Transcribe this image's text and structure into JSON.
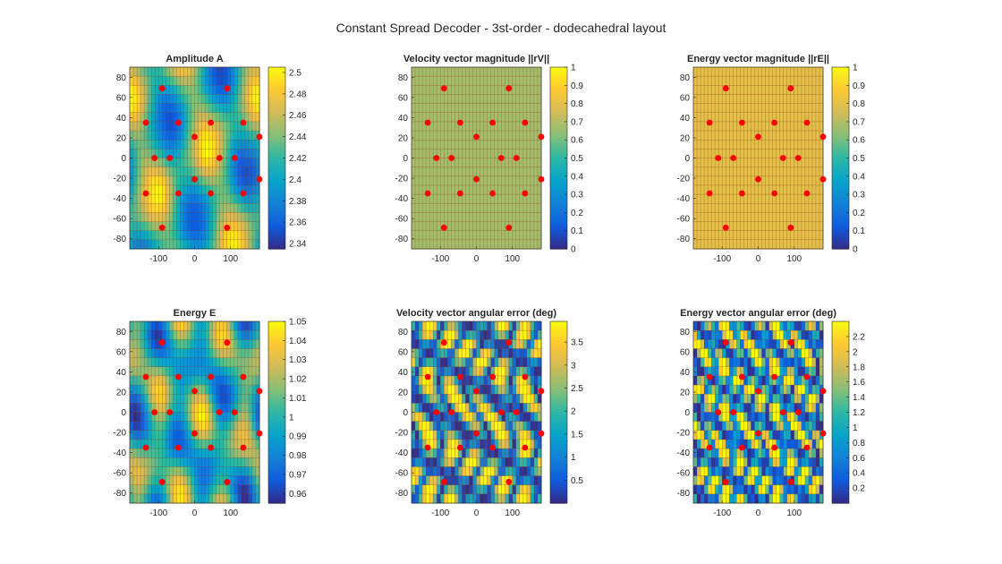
{
  "figure_title": "Constant Spread Decoder - 3st-order - dodecahedral layout",
  "colors": {
    "background": "#ffffff",
    "speaker_marker": "#ff0000",
    "grid": "#8a3a1a",
    "colormap": [
      "#352a87",
      "#0f5cdd",
      "#1481d6",
      "#06a4ca",
      "#2eb7a4",
      "#87bf77",
      "#d1bb59",
      "#fec832",
      "#f9fb0e"
    ]
  },
  "chart_data": [
    {
      "type": "heatmap",
      "title": "Amplitude A",
      "xlim": [
        -180,
        180
      ],
      "ylim": [
        -90,
        90
      ],
      "xticks": [
        -100,
        0,
        100
      ],
      "yticks": [
        -80,
        -60,
        -40,
        -20,
        0,
        20,
        40,
        60,
        80
      ],
      "colorbar": {
        "range": [
          2.335,
          2.505
        ],
        "ticks": [
          "2.5",
          "2.48",
          "2.46",
          "2.44",
          "2.42",
          "2.4",
          "2.38",
          "2.36",
          "2.34"
        ],
        "tick_values": [
          2.5,
          2.48,
          2.46,
          2.44,
          2.42,
          2.4,
          2.38,
          2.36,
          2.34
        ]
      },
      "field": "amplitude"
    },
    {
      "type": "heatmap",
      "title": "Velocity vector magnitude ||rV||",
      "xlim": [
        -180,
        180
      ],
      "ylim": [
        -90,
        90
      ],
      "xticks": [
        -100,
        0,
        100
      ],
      "yticks": [
        -80,
        -60,
        -40,
        -20,
        0,
        20,
        40,
        60,
        80
      ],
      "colorbar": {
        "range": [
          0,
          1
        ],
        "ticks": [
          "1",
          "0.9",
          "0.8",
          "0.7",
          "0.6",
          "0.5",
          "0.4",
          "0.3",
          "0.2",
          "0.1",
          "0"
        ],
        "tick_values": [
          1,
          0.9,
          0.8,
          0.7,
          0.6,
          0.5,
          0.4,
          0.3,
          0.2,
          0.1,
          0
        ]
      },
      "uniform_value": 0.67
    },
    {
      "type": "heatmap",
      "title": "Energy vector magnitude ||rE||",
      "xlim": [
        -180,
        180
      ],
      "ylim": [
        -90,
        90
      ],
      "xticks": [
        -100,
        0,
        100
      ],
      "yticks": [
        -80,
        -60,
        -40,
        -20,
        0,
        20,
        40,
        60,
        80
      ],
      "colorbar": {
        "range": [
          0,
          1
        ],
        "ticks": [
          "1",
          "0.9",
          "0.8",
          "0.7",
          "0.6",
          "0.5",
          "0.4",
          "0.3",
          "0.2",
          "0.1",
          "0"
        ],
        "tick_values": [
          1,
          0.9,
          0.8,
          0.7,
          0.6,
          0.5,
          0.4,
          0.3,
          0.2,
          0.1,
          0
        ]
      },
      "uniform_value": 0.8
    },
    {
      "type": "heatmap",
      "title": "Energy E",
      "xlim": [
        -180,
        180
      ],
      "ylim": [
        -90,
        90
      ],
      "xticks": [
        -100,
        0,
        100
      ],
      "yticks": [
        -80,
        -60,
        -40,
        -20,
        0,
        20,
        40,
        60,
        80
      ],
      "colorbar": {
        "range": [
          0.955,
          1.05
        ],
        "ticks": [
          "1.05",
          "1.04",
          "1.03",
          "1.02",
          "1.01",
          "1",
          "0.99",
          "0.98",
          "0.97",
          "0.96"
        ],
        "tick_values": [
          1.05,
          1.04,
          1.03,
          1.02,
          1.01,
          1.0,
          0.99,
          0.98,
          0.97,
          0.96
        ]
      },
      "field": "energy"
    },
    {
      "type": "heatmap",
      "title": "Velocity vector angular error (deg)",
      "xlim": [
        -180,
        180
      ],
      "ylim": [
        -90,
        90
      ],
      "xticks": [
        -100,
        0,
        100
      ],
      "yticks": [
        -80,
        -60,
        -40,
        -20,
        0,
        20,
        40,
        60,
        80
      ],
      "colorbar": {
        "range": [
          0,
          3.95
        ],
        "ticks": [
          "3.5",
          "3",
          "2.5",
          "2",
          "1.5",
          "1",
          "0.5"
        ],
        "tick_values": [
          3.5,
          3,
          2.5,
          2,
          1.5,
          1,
          0.5
        ]
      },
      "field": "velocity_error"
    },
    {
      "type": "heatmap",
      "title": "Energy vector angular error (deg)",
      "xlim": [
        -180,
        180
      ],
      "ylim": [
        -90,
        90
      ],
      "xticks": [
        -100,
        0,
        100
      ],
      "yticks": [
        -80,
        -60,
        -40,
        -20,
        0,
        20,
        40,
        60,
        80
      ],
      "colorbar": {
        "range": [
          0,
          2.4
        ],
        "ticks": [
          "2.2",
          "2",
          "1.8",
          "1.6",
          "1.4",
          "1.2",
          "1",
          "0.8",
          "0.6",
          "0.4",
          "0.2"
        ],
        "tick_values": [
          2.2,
          2,
          1.8,
          1.6,
          1.4,
          1.2,
          1,
          0.8,
          0.6,
          0.4,
          0.2
        ]
      },
      "field": "energy_error"
    }
  ],
  "speakers_deg": [
    [
      -90,
      69
    ],
    [
      90,
      69
    ],
    [
      -135,
      35
    ],
    [
      -45,
      35
    ],
    [
      45,
      35
    ],
    [
      135,
      35
    ],
    [
      180,
      21
    ],
    [
      0,
      21
    ],
    [
      -111,
      0
    ],
    [
      -69,
      0
    ],
    [
      69,
      0
    ],
    [
      111,
      0
    ],
    [
      180,
      -21
    ],
    [
      0,
      -21
    ],
    [
      -135,
      -35
    ],
    [
      -45,
      -35
    ],
    [
      45,
      -35
    ],
    [
      135,
      -35
    ],
    [
      -90,
      -69
    ],
    [
      90,
      -69
    ]
  ]
}
